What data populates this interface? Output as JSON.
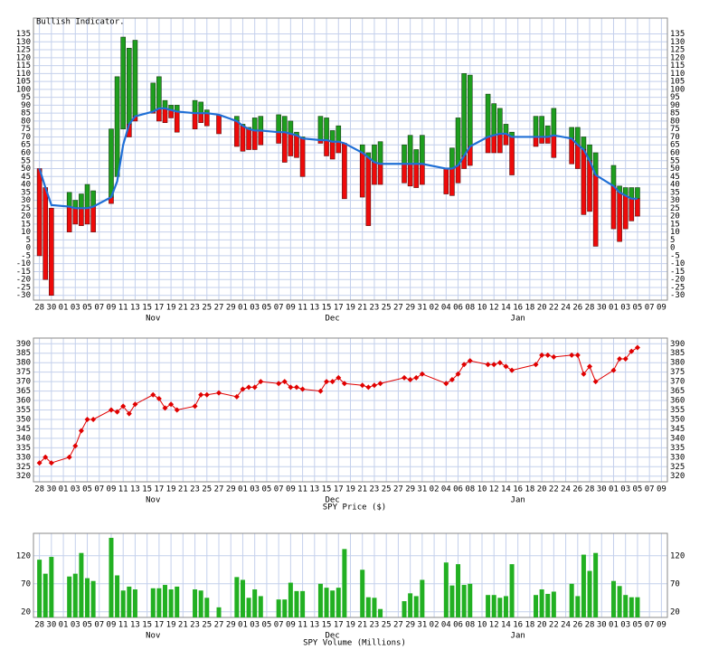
{
  "chart_data": [
    {
      "type": "range-bar",
      "title": "Bullish Indicator.",
      "xlim": [
        "10-27",
        "02-10"
      ],
      "xticks": [
        {
          "value": "10-28",
          "label": "28"
        },
        {
          "value": "10-30",
          "label": "30"
        },
        {
          "value": "11-01",
          "label": "01"
        },
        {
          "value": "11-03",
          "label": "03"
        },
        {
          "value": "11-05",
          "label": "05"
        },
        {
          "value": "11-07",
          "label": "07"
        },
        {
          "value": "11-09",
          "label": "09"
        },
        {
          "value": "11-11",
          "label": "11"
        },
        {
          "value": "11-13",
          "label": "13"
        },
        {
          "value": "11-15",
          "label": "15"
        },
        {
          "value": "11-17",
          "label": "17"
        },
        {
          "value": "11-19",
          "label": "19"
        },
        {
          "value": "11-21",
          "label": "21"
        },
        {
          "value": "11-23",
          "label": "23"
        },
        {
          "value": "11-25",
          "label": "25"
        },
        {
          "value": "11-27",
          "label": "27"
        },
        {
          "value": "11-29",
          "label": "29"
        },
        {
          "value": "12-01",
          "label": "01"
        },
        {
          "value": "12-03",
          "label": "03"
        },
        {
          "value": "12-05",
          "label": "05"
        },
        {
          "value": "12-07",
          "label": "07"
        },
        {
          "value": "12-09",
          "label": "09"
        },
        {
          "value": "12-11",
          "label": "11"
        },
        {
          "value": "12-13",
          "label": "13"
        },
        {
          "value": "12-15",
          "label": "15"
        },
        {
          "value": "12-17",
          "label": "17"
        },
        {
          "value": "12-19",
          "label": "19"
        },
        {
          "value": "12-21",
          "label": "21"
        },
        {
          "value": "12-23",
          "label": "23"
        },
        {
          "value": "12-25",
          "label": "25"
        },
        {
          "value": "12-27",
          "label": "27"
        },
        {
          "value": "12-29",
          "label": "29"
        },
        {
          "value": "12-31",
          "label": "31"
        },
        {
          "value": "01-02",
          "label": "02"
        },
        {
          "value": "01-04",
          "label": "04"
        },
        {
          "value": "01-06",
          "label": "06"
        },
        {
          "value": "01-08",
          "label": "08"
        },
        {
          "value": "01-10",
          "label": "10"
        },
        {
          "value": "01-12",
          "label": "12"
        },
        {
          "value": "01-14",
          "label": "14"
        },
        {
          "value": "01-16",
          "label": "16"
        },
        {
          "value": "01-18",
          "label": "18"
        },
        {
          "value": "01-20",
          "label": "20"
        },
        {
          "value": "01-22",
          "label": "22"
        },
        {
          "value": "01-24",
          "label": "24"
        },
        {
          "value": "01-26",
          "label": "26"
        },
        {
          "value": "01-28",
          "label": "28"
        },
        {
          "value": "01-30",
          "label": "30"
        },
        {
          "value": "02-01",
          "label": "01"
        },
        {
          "value": "02-03",
          "label": "03"
        },
        {
          "value": "02-05",
          "label": "05"
        },
        {
          "value": "02-07",
          "label": "07"
        },
        {
          "value": "02-09",
          "label": "09"
        }
      ],
      "month_ticks": [
        {
          "value": "11-16",
          "label": "Nov"
        },
        {
          "value": "12-16",
          "label": "Dec"
        },
        {
          "value": "01-16",
          "label": "Jan"
        }
      ],
      "x": [
        "10-28",
        "10-29",
        "10-30",
        "11-02",
        "11-03",
        "11-04",
        "11-05",
        "11-06",
        "11-09",
        "11-10",
        "11-11",
        "11-12",
        "11-13",
        "11-16",
        "11-17",
        "11-18",
        "11-19",
        "11-20",
        "11-23",
        "11-24",
        "11-25",
        "11-27",
        "11-30",
        "12-01",
        "12-02",
        "12-03",
        "12-04",
        "12-07",
        "12-08",
        "12-09",
        "12-10",
        "12-11",
        "12-14",
        "12-15",
        "12-16",
        "12-17",
        "12-18",
        "12-21",
        "12-22",
        "12-23",
        "12-24",
        "12-28",
        "12-29",
        "12-30",
        "12-31",
        "01-04",
        "01-05",
        "01-06",
        "01-07",
        "01-08",
        "01-11",
        "01-12",
        "01-13",
        "01-14",
        "01-15",
        "01-19",
        "01-20",
        "01-21",
        "01-22",
        "01-25",
        "01-26",
        "01-27",
        "01-28",
        "01-29",
        "02-01",
        "02-02",
        "02-03",
        "02-04",
        "02-05"
      ],
      "high": [
        50,
        38,
        25,
        35,
        30,
        34,
        40,
        36,
        75,
        108,
        133,
        126,
        131,
        104,
        108,
        93,
        90,
        90,
        93,
        92,
        87,
        84,
        83,
        78,
        76,
        82,
        83,
        84,
        83,
        80,
        73,
        70,
        83,
        82,
        74,
        77,
        66,
        65,
        60,
        65,
        67,
        65,
        71,
        62,
        71,
        50,
        63,
        82,
        110,
        109,
        97,
        91,
        88,
        78,
        73,
        83,
        83,
        77,
        88,
        76,
        76,
        70,
        65,
        60,
        52,
        39,
        38,
        38,
        38
      ],
      "low": [
        -5,
        -20,
        -30,
        10,
        15,
        14,
        15,
        10,
        28,
        45,
        75,
        70,
        80,
        85,
        80,
        79,
        82,
        73,
        75,
        79,
        77,
        72,
        64,
        61,
        62,
        62,
        65,
        66,
        54,
        58,
        57,
        45,
        66,
        58,
        56,
        60,
        31,
        32,
        14,
        40,
        40,
        41,
        39,
        38,
        40,
        34,
        33,
        41,
        50,
        52,
        60,
        60,
        60,
        65,
        46,
        64,
        66,
        66,
        57,
        53,
        50,
        21,
        23,
        1,
        12,
        4,
        12,
        17,
        20
      ],
      "average": [
        50,
        38,
        27,
        26,
        25,
        25,
        25,
        26,
        32,
        42,
        65,
        78,
        83,
        86,
        88,
        88,
        87,
        86,
        85,
        85,
        85,
        84,
        80,
        77,
        75,
        74,
        74,
        73,
        73,
        72,
        71,
        69,
        68,
        68,
        67,
        67,
        66,
        60,
        57,
        54,
        53,
        53,
        53,
        53,
        53,
        50,
        50,
        52,
        58,
        64,
        70,
        71,
        72,
        72,
        70,
        70,
        70,
        70,
        71,
        69,
        65,
        62,
        55,
        46,
        39,
        35,
        33,
        31,
        31
      ],
      "up_color": "#1e9e1e",
      "down_color": "#ee0a0a",
      "line_color": "#1f6fd6",
      "ylim": [
        -33,
        145
      ],
      "yticks": [
        135,
        130,
        125,
        120,
        115,
        110,
        105,
        100,
        95,
        90,
        85,
        80,
        75,
        70,
        65,
        60,
        55,
        50,
        45,
        40,
        35,
        30,
        25,
        20,
        15,
        10,
        5,
        0,
        -5,
        -10,
        -15,
        -20,
        -25,
        -30
      ],
      "grid": true
    },
    {
      "type": "line",
      "title": "SPY Price ($)",
      "color": "#e00000",
      "values": [
        327,
        330,
        327,
        330,
        336,
        344,
        350,
        350,
        355,
        354,
        357,
        353,
        358,
        363,
        361,
        356,
        358,
        355,
        357,
        363,
        363,
        364,
        362,
        366,
        367,
        367,
        370,
        369,
        370,
        367,
        367,
        366,
        365,
        370,
        370,
        372,
        369,
        368,
        367,
        368,
        369,
        372,
        371,
        372,
        374,
        369,
        371,
        374,
        379,
        381,
        379,
        379,
        380,
        378,
        376,
        379,
        384,
        384,
        383,
        384,
        384,
        374,
        378,
        370,
        376,
        382,
        382,
        386,
        388
      ],
      "ylim": [
        317,
        393
      ],
      "yticks": [
        390,
        385,
        380,
        375,
        370,
        365,
        360,
        355,
        350,
        345,
        340,
        335,
        330,
        325,
        320
      ],
      "grid": true
    },
    {
      "type": "bar",
      "title": "SPY Volume (Millions)",
      "color": "#22b022",
      "values": [
        113,
        88,
        118,
        83,
        88,
        125,
        80,
        75,
        152,
        85,
        58,
        65,
        60,
        62,
        62,
        68,
        60,
        65,
        60,
        58,
        45,
        28,
        82,
        77,
        45,
        60,
        48,
        42,
        42,
        72,
        57,
        57,
        70,
        63,
        58,
        63,
        132,
        95,
        46,
        45,
        25,
        39,
        53,
        48,
        77,
        108,
        67,
        105,
        68,
        70,
        50,
        50,
        45,
        48,
        105,
        50,
        60,
        52,
        56,
        70,
        48,
        122,
        93,
        125,
        75,
        66,
        50,
        46,
        46
      ],
      "ylim": [
        10,
        160
      ],
      "yticks": [
        120,
        70,
        20
      ],
      "grid": true
    }
  ]
}
